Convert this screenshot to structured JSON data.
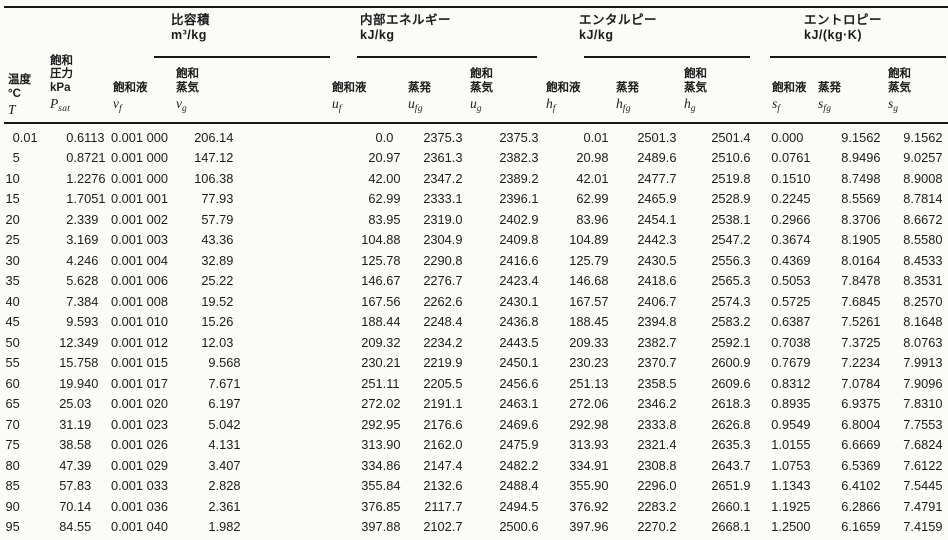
{
  "page": {
    "background": "#fbfbf8",
    "ink": "#1b1b1b",
    "rule_color": "#171717"
  },
  "table": {
    "row_headers": [
      {
        "lines": [
          "温度",
          "°C"
        ],
        "symbol": "T",
        "symbol_sub": ""
      },
      {
        "lines": [
          "飽和",
          "圧力",
          "kPa"
        ],
        "symbol": "P",
        "symbol_sub": "sat"
      }
    ],
    "groups": [
      {
        "title": "比容積",
        "unit": "m³/kg"
      },
      {
        "title": "内部エネルギー",
        "unit": "kJ/kg"
      },
      {
        "title": "エンタルピー",
        "unit": "kJ/kg"
      },
      {
        "title": "エントロピー",
        "unit": "kJ/(kg·K)"
      }
    ],
    "sub_columns": [
      {
        "lines": [
          "飽和液"
        ],
        "symbol": "v",
        "symbol_sub": "f"
      },
      {
        "lines": [
          "飽和",
          "蒸気"
        ],
        "symbol": "v",
        "symbol_sub": "g"
      },
      {
        "lines": [
          "飽和液"
        ],
        "symbol": "u",
        "symbol_sub": "f"
      },
      {
        "lines": [
          "蒸発"
        ],
        "symbol": "u",
        "symbol_sub": "fg"
      },
      {
        "lines": [
          "飽和",
          "蒸気"
        ],
        "symbol": "u",
        "symbol_sub": "g"
      },
      {
        "lines": [
          "飽和液"
        ],
        "symbol": "h",
        "symbol_sub": "f"
      },
      {
        "lines": [
          "蒸発"
        ],
        "symbol": "h",
        "symbol_sub": "fg"
      },
      {
        "lines": [
          "飽和",
          "蒸気"
        ],
        "symbol": "h",
        "symbol_sub": "g"
      },
      {
        "lines": [
          "飽和液"
        ],
        "symbol": "s",
        "symbol_sub": "f"
      },
      {
        "lines": [
          "蒸発"
        ],
        "symbol": "s",
        "symbol_sub": "fg"
      },
      {
        "lines": [
          "飽和",
          "蒸気"
        ],
        "symbol": "s",
        "symbol_sub": "g"
      }
    ],
    "rows": [
      [
        "0.01",
        "0.6113",
        "0.001 000",
        "206.14",
        "0.0",
        "2375.3",
        "2375.3",
        "0.01",
        "2501.3",
        "2501.4",
        "0.000",
        "9.1562",
        "9.1562"
      ],
      [
        "5",
        "0.8721",
        "0.001 000",
        "147.12",
        "20.97",
        "2361.3",
        "2382.3",
        "20.98",
        "2489.6",
        "2510.6",
        "0.0761",
        "8.9496",
        "9.0257"
      ],
      [
        "10",
        "1.2276",
        "0.001 000",
        "106.38",
        "42.00",
        "2347.2",
        "2389.2",
        "42.01",
        "2477.7",
        "2519.8",
        "0.1510",
        "8.7498",
        "8.9008"
      ],
      [
        "15",
        "1.7051",
        "0.001 001",
        "77.93",
        "62.99",
        "2333.1",
        "2396.1",
        "62.99",
        "2465.9",
        "2528.9",
        "0.2245",
        "8.5569",
        "8.7814"
      ],
      [
        "20",
        "2.339",
        "0.001 002",
        "57.79",
        "83.95",
        "2319.0",
        "2402.9",
        "83.96",
        "2454.1",
        "2538.1",
        "0.2966",
        "8.3706",
        "8.6672"
      ],
      [
        "25",
        "3.169",
        "0.001 003",
        "43.36",
        "104.88",
        "2304.9",
        "2409.8",
        "104.89",
        "2442.3",
        "2547.2",
        "0.3674",
        "8.1905",
        "8.5580"
      ],
      [
        "30",
        "4.246",
        "0.001 004",
        "32.89",
        "125.78",
        "2290.8",
        "2416.6",
        "125.79",
        "2430.5",
        "2556.3",
        "0.4369",
        "8.0164",
        "8.4533"
      ],
      [
        "35",
        "5.628",
        "0.001 006",
        "25.22",
        "146.67",
        "2276.7",
        "2423.4",
        "146.68",
        "2418.6",
        "2565.3",
        "0.5053",
        "7.8478",
        "8.3531"
      ],
      [
        "40",
        "7.384",
        "0.001 008",
        "19.52",
        "167.56",
        "2262.6",
        "2430.1",
        "167.57",
        "2406.7",
        "2574.3",
        "0.5725",
        "7.6845",
        "8.2570"
      ],
      [
        "45",
        "9.593",
        "0.001 010",
        "15.26",
        "188.44",
        "2248.4",
        "2436.8",
        "188.45",
        "2394.8",
        "2583.2",
        "0.6387",
        "7.5261",
        "8.1648"
      ],
      [
        "50",
        "12.349",
        "0.001 012",
        "12.03",
        "209.32",
        "2234.2",
        "2443.5",
        "209.33",
        "2382.7",
        "2592.1",
        "0.7038",
        "7.3725",
        "8.0763"
      ],
      [
        "55",
        "15.758",
        "0.001 015",
        "9.568",
        "230.21",
        "2219.9",
        "2450.1",
        "230.23",
        "2370.7",
        "2600.9",
        "0.7679",
        "7.2234",
        "7.9913"
      ],
      [
        "60",
        "19.940",
        "0.001 017",
        "7.671",
        "251.11",
        "2205.5",
        "2456.6",
        "251.13",
        "2358.5",
        "2609.6",
        "0.8312",
        "7.0784",
        "7.9096"
      ],
      [
        "65",
        "25.03",
        "0.001 020",
        "6.197",
        "272.02",
        "2191.1",
        "2463.1",
        "272.06",
        "2346.2",
        "2618.3",
        "0.8935",
        "6.9375",
        "7.8310"
      ],
      [
        "70",
        "31.19",
        "0.001 023",
        "5.042",
        "292.95",
        "2176.6",
        "2469.6",
        "292.98",
        "2333.8",
        "2626.8",
        "0.9549",
        "6.8004",
        "7.7553"
      ],
      [
        "75",
        "38.58",
        "0.001 026",
        "4.131",
        "313.90",
        "2162.0",
        "2475.9",
        "313.93",
        "2321.4",
        "2635.3",
        "1.0155",
        "6.6669",
        "7.6824"
      ],
      [
        "80",
        "47.39",
        "0.001 029",
        "3.407",
        "334.86",
        "2147.4",
        "2482.2",
        "334.91",
        "2308.8",
        "2643.7",
        "1.0753",
        "6.5369",
        "7.6122"
      ],
      [
        "85",
        "57.83",
        "0.001 033",
        "2.828",
        "355.84",
        "2132.6",
        "2488.4",
        "355.90",
        "2296.0",
        "2651.9",
        "1.1343",
        "6.4102",
        "7.5445"
      ],
      [
        "90",
        "70.14",
        "0.001 036",
        "2.361",
        "376.85",
        "2117.7",
        "2494.5",
        "376.92",
        "2283.2",
        "2660.1",
        "1.1925",
        "6.2866",
        "7.4791"
      ],
      [
        "95",
        "84.55",
        "0.001 040",
        "1.982",
        "397.88",
        "2102.7",
        "2500.6",
        "397.96",
        "2270.2",
        "2668.1",
        "1.2500",
        "6.1659",
        "7.4159"
      ]
    ]
  }
}
